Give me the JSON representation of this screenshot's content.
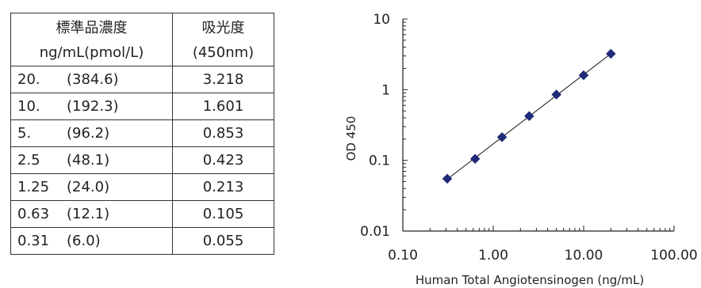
{
  "table": {
    "headers": [
      {
        "line1": "標準品濃度",
        "line2": "ng/mL(pmol/L)"
      },
      {
        "line1": "吸光度",
        "line2": "(450nm)"
      }
    ],
    "rows": [
      {
        "conc": "20.",
        "pmol": "(384.6)",
        "od": "3.218"
      },
      {
        "conc": "10.",
        "pmol": "(192.3)",
        "od": "1.601"
      },
      {
        "conc": "5.",
        "pmol": "(96.2)",
        "od": "0.853"
      },
      {
        "conc": "2.5",
        "pmol": "(48.1)",
        "od": "0.423"
      },
      {
        "conc": "1.25",
        "pmol": "(24.0)",
        "od": "0.213"
      },
      {
        "conc": "0.63",
        "pmol": "(12.1)",
        "od": "0.105"
      },
      {
        "conc": "0.31",
        "pmol": "(6.0)",
        "od": "0.055"
      }
    ]
  },
  "chart_data": {
    "type": "scatter",
    "xlabel": "Human Total Angiotensinogen (ng/mL)",
    "ylabel": "OD 450",
    "xscale": "log",
    "yscale": "log",
    "xlim": [
      0.1,
      100
    ],
    "ylim": [
      0.01,
      10
    ],
    "x_ticks": [
      "0.10",
      "1.00",
      "10.00",
      "100.00"
    ],
    "y_ticks": [
      "0.01",
      "0.1",
      "1",
      "10"
    ],
    "grid": false,
    "trendline": true,
    "marker": "diamond",
    "marker_color": "#1F2A78",
    "points": [
      {
        "x": 0.31,
        "y": 0.055
      },
      {
        "x": 0.63,
        "y": 0.105
      },
      {
        "x": 1.25,
        "y": 0.213
      },
      {
        "x": 2.5,
        "y": 0.423
      },
      {
        "x": 5,
        "y": 0.853
      },
      {
        "x": 10,
        "y": 1.601
      },
      {
        "x": 20,
        "y": 3.218
      }
    ]
  }
}
